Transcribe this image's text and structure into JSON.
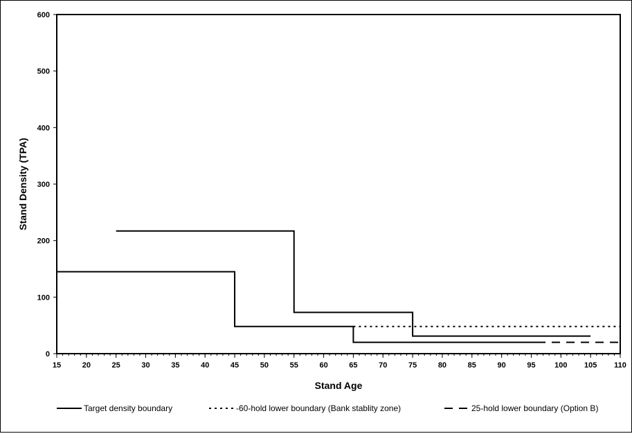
{
  "chart_data": {
    "type": "line",
    "title": "",
    "xlabel": "Stand Age",
    "ylabel": "Stand Density (TPA)",
    "xlim": [
      15,
      110
    ],
    "ylim": [
      0,
      600
    ],
    "x_ticks": [
      15,
      20,
      25,
      30,
      35,
      40,
      45,
      50,
      55,
      60,
      65,
      70,
      75,
      80,
      85,
      90,
      95,
      100,
      105,
      110
    ],
    "x_minor_step": 1,
    "y_ticks": [
      0,
      100,
      200,
      300,
      400,
      500,
      600
    ],
    "grid": false,
    "legend_position": "bottom",
    "series": [
      {
        "name": "Target density boundary",
        "style": "solid",
        "color": "#000000",
        "x": [
          15,
          45,
          45,
          65,
          65,
          96
        ],
        "y": [
          145,
          145,
          48,
          48,
          20,
          20
        ]
      },
      {
        "name": "Target density boundary",
        "style": "solid",
        "color": "#000000",
        "show_in_legend": false,
        "x": [
          25,
          55,
          55,
          75,
          75,
          105
        ],
        "y": [
          217,
          217,
          73,
          73,
          31,
          31
        ]
      },
      {
        "name": "-60-hold lower boundary (Bank stablity zone)",
        "style": "dotted",
        "color": "#000000",
        "x": [
          65,
          110
        ],
        "y": [
          48,
          48
        ]
      },
      {
        "name": "25-hold lower boundary (Option B)",
        "style": "dashed",
        "color": "#000000",
        "x": [
          96,
          110
        ],
        "y": [
          20,
          20
        ]
      }
    ]
  }
}
